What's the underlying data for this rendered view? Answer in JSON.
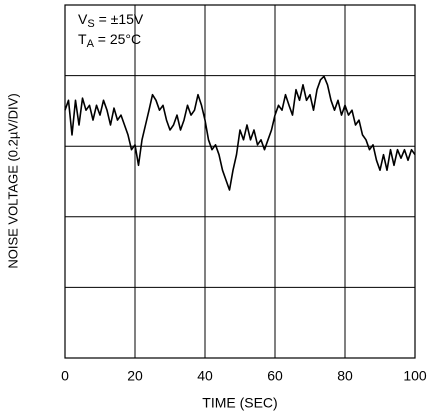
{
  "chart_data": {
    "type": "line",
    "xlabel": "TIME (SEC)",
    "ylabel": "NOISE VOLTAGE (0.2µV/DIV)",
    "annotations": [
      {
        "main": "V",
        "sub": "S",
        "rest": " = ±15V"
      },
      {
        "main": "T",
        "sub": "A",
        "rest": " = 25°C"
      }
    ],
    "xlim": [
      0,
      100
    ],
    "xticks": [
      0,
      20,
      40,
      60,
      80,
      100
    ],
    "ylim": [
      0,
      5
    ],
    "ygrid": [
      1,
      2,
      3,
      4
    ],
    "grid": true,
    "series": [
      {
        "color": "#000000",
        "x": [
          0,
          1,
          2,
          3,
          4,
          5,
          6,
          7,
          8,
          9,
          10,
          11,
          12,
          13,
          14,
          15,
          16,
          17,
          18,
          19,
          20,
          21,
          22,
          23,
          24,
          25,
          26,
          27,
          28,
          29,
          30,
          31,
          32,
          33,
          34,
          35,
          36,
          37,
          38,
          39,
          40,
          41,
          42,
          43,
          44,
          45,
          46,
          47,
          48,
          49,
          50,
          51,
          52,
          53,
          54,
          55,
          56,
          57,
          58,
          59,
          60,
          61,
          62,
          63,
          64,
          65,
          66,
          67,
          68,
          69,
          70,
          71,
          72,
          73,
          74,
          75,
          76,
          77,
          78,
          79,
          80,
          81,
          82,
          83,
          84,
          85,
          86,
          87,
          88,
          89,
          90,
          91,
          92,
          93,
          94,
          95,
          96,
          97,
          98,
          99,
          100
        ],
        "values": [
          3.51,
          3.65,
          3.16,
          3.65,
          3.3,
          3.68,
          3.51,
          3.58,
          3.37,
          3.58,
          3.44,
          3.65,
          3.51,
          3.3,
          3.54,
          3.37,
          3.44,
          3.3,
          3.16,
          2.95,
          3.02,
          2.73,
          3.09,
          3.3,
          3.51,
          3.73,
          3.65,
          3.51,
          3.58,
          3.37,
          3.23,
          3.3,
          3.44,
          3.23,
          3.37,
          3.58,
          3.44,
          3.51,
          3.73,
          3.58,
          3.37,
          3.09,
          2.95,
          3.02,
          2.88,
          2.66,
          2.52,
          2.38,
          2.66,
          2.88,
          3.23,
          3.09,
          3.3,
          3.09,
          3.23,
          3.02,
          3.09,
          2.95,
          3.09,
          3.23,
          3.44,
          3.58,
          3.51,
          3.73,
          3.58,
          3.44,
          3.8,
          3.65,
          3.87,
          3.65,
          3.73,
          3.51,
          3.8,
          3.94,
          3.99,
          3.87,
          3.65,
          3.51,
          3.65,
          3.44,
          3.58,
          3.44,
          3.51,
          3.3,
          3.37,
          3.16,
          3.09,
          2.95,
          3.02,
          2.8,
          2.66,
          2.88,
          2.66,
          2.95,
          2.73,
          2.95,
          2.83,
          2.95,
          2.8,
          2.95,
          2.88
        ]
      }
    ]
  }
}
